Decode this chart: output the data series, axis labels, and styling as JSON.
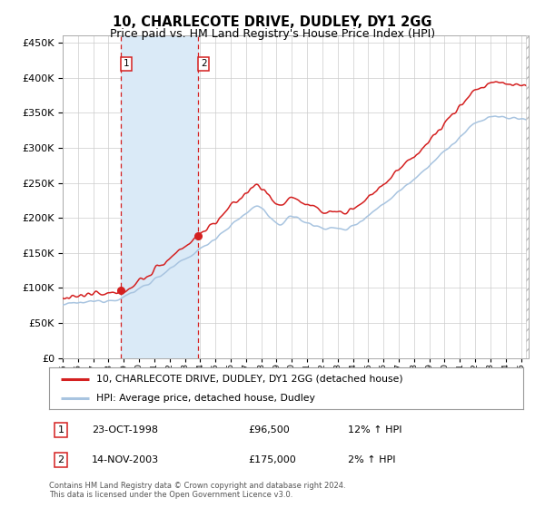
{
  "title": "10, CHARLECOTE DRIVE, DUDLEY, DY1 2GG",
  "subtitle": "Price paid vs. HM Land Registry's House Price Index (HPI)",
  "legend_line1": "10, CHARLECOTE DRIVE, DUDLEY, DY1 2GG (detached house)",
  "legend_line2": "HPI: Average price, detached house, Dudley",
  "transaction1_date": "23-OCT-1998",
  "transaction1_price": "£96,500",
  "transaction1_hpi": "12% ↑ HPI",
  "transaction1_x": 1998.81,
  "transaction1_y": 96500,
  "transaction2_date": "14-NOV-2003",
  "transaction2_price": "£175,000",
  "transaction2_hpi": "2% ↑ HPI",
  "transaction2_x": 2003.88,
  "transaction2_y": 175000,
  "shade_x1": 1998.81,
  "shade_x2": 2003.88,
  "ylim": [
    0,
    460000
  ],
  "xlim": [
    1995.0,
    2025.5
  ],
  "footer": "Contains HM Land Registry data © Crown copyright and database right 2024.\nThis data is licensed under the Open Government Licence v3.0.",
  "hpi_color": "#a8c4e0",
  "price_color": "#d42020",
  "shade_color": "#daeaf7",
  "grid_color": "#cccccc",
  "bg_color": "#ffffff",
  "title_fontsize": 10.5,
  "subtitle_fontsize": 9,
  "yticks": [
    0,
    50000,
    100000,
    150000,
    200000,
    250000,
    300000,
    350000,
    400000,
    450000
  ]
}
